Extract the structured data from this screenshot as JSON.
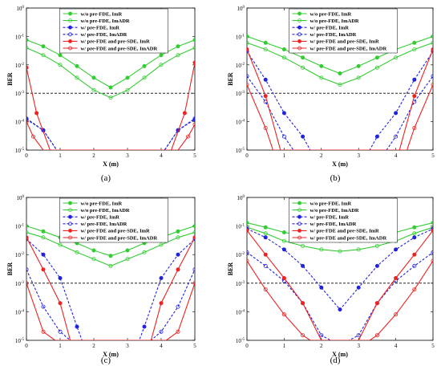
{
  "legend": [
    "w/o pre-FDE, ImR",
    "w/o pre-FDE, ImADR",
    "w/ pre-FDE, ImR",
    "w/ pre-FDE, ImADR",
    "w/ pre-FDE and pre-SDE, ImR",
    "w/ pre-FDE and pre-SDE, ImADR"
  ],
  "styles": {
    "green": "#33cc33",
    "blue": "#2222dd",
    "red": "#ee2222",
    "threshold": "#000000"
  },
  "chart_data": [
    {
      "type": "line",
      "caption": "(a)",
      "xlabel": "X (m)",
      "ylabel": "BER",
      "xlim": [
        0,
        5
      ],
      "ylim": [
        1e-05,
        1
      ],
      "yscale": "log",
      "threshold": 0.001,
      "x": [
        0,
        0.5,
        1,
        1.5,
        2,
        2.5,
        3,
        3.5,
        4,
        4.5,
        5
      ],
      "series": [
        {
          "name": "w/o pre-FDE, ImR",
          "color": "green",
          "dash": false,
          "values": [
            0.075,
            0.045,
            0.022,
            0.009,
            0.0035,
            0.0016,
            0.0035,
            0.009,
            0.022,
            0.045,
            0.075
          ]
        },
        {
          "name": "w/o pre-FDE, ImADR",
          "color": "green",
          "dash": false,
          "values": [
            0.04,
            0.022,
            0.01,
            0.0035,
            0.0013,
            0.0007,
            0.0013,
            0.0035,
            0.01,
            0.022,
            0.04
          ]
        },
        {
          "name": "w/ pre-FDE, ImR",
          "color": "blue",
          "dash": true,
          "x": [
            0,
            0.5,
            0.9,
            4.1,
            4.5,
            5
          ],
          "values": [
            0.00012,
            5e-05,
            1e-05,
            1e-05,
            5e-05,
            0.00012
          ]
        },
        {
          "name": "w/ pre-FDE, ImADR",
          "color": "blue",
          "dash": true,
          "x": [
            0,
            0.5,
            0.9,
            4.1,
            4.5,
            5
          ],
          "values": [
            0.00013,
            5e-05,
            1e-05,
            1e-05,
            5e-05,
            0.00013
          ]
        },
        {
          "name": "w/ pre-FDE and pre-SDE, ImR",
          "color": "red",
          "dash": false,
          "x": [
            0,
            0.3,
            0.7,
            4.3,
            4.7,
            5
          ],
          "values": [
            0.008,
            0.0002,
            1e-05,
            1e-05,
            0.0002,
            0.012
          ]
        },
        {
          "name": "w/ pre-FDE and pre-SDE, ImADR",
          "color": "red",
          "dash": false,
          "x": [
            0,
            0.2,
            0.5,
            4.5,
            4.8,
            5
          ],
          "values": [
            0.0001,
            3e-05,
            1e-05,
            1e-05,
            3e-05,
            8e-05
          ]
        }
      ]
    },
    {
      "type": "line",
      "caption": "(b)",
      "xlabel": "X (m)",
      "ylabel": "BER",
      "xlim": [
        0,
        5
      ],
      "ylim": [
        1e-05,
        1
      ],
      "yscale": "log",
      "threshold": 0.001,
      "x": [
        0,
        0.5,
        1,
        1.5,
        2,
        2.5,
        3,
        3.5,
        4,
        4.5,
        5
      ],
      "series": [
        {
          "name": "w/o pre-FDE, ImR",
          "color": "green",
          "dash": false,
          "values": [
            0.1,
            0.06,
            0.035,
            0.018,
            0.009,
            0.005,
            0.009,
            0.018,
            0.035,
            0.06,
            0.1
          ]
        },
        {
          "name": "w/o pre-FDE, ImADR",
          "color": "green",
          "dash": false,
          "values": [
            0.06,
            0.035,
            0.018,
            0.008,
            0.0035,
            0.002,
            0.0035,
            0.008,
            0.018,
            0.035,
            0.06
          ]
        },
        {
          "name": "w/ pre-FDE, ImR",
          "color": "blue",
          "dash": true,
          "x": [
            0,
            0.5,
            1,
            1.5,
            1.7,
            3.3,
            3.5,
            4,
            4.5,
            5
          ],
          "values": [
            0.03,
            0.003,
            0.0002,
            3e-05,
            1e-05,
            1e-05,
            3e-05,
            0.0002,
            0.003,
            0.03
          ]
        },
        {
          "name": "w/ pre-FDE, ImADR",
          "color": "blue",
          "dash": true,
          "x": [
            0,
            0.5,
            1,
            1.25,
            3.75,
            4,
            4.5,
            5
          ],
          "values": [
            0.004,
            0.0005,
            3e-05,
            1e-05,
            1e-05,
            3e-05,
            0.0005,
            0.004
          ]
        },
        {
          "name": "w/ pre-FDE and pre-SDE, ImR",
          "color": "red",
          "dash": false,
          "x": [
            0,
            0.5,
            0.9,
            4.1,
            4.5,
            5
          ],
          "values": [
            0.035,
            0.0008,
            1e-05,
            1e-05,
            0.0008,
            0.035
          ]
        },
        {
          "name": "w/ pre-FDE and pre-SDE, ImADR",
          "color": "red",
          "dash": false,
          "x": [
            0,
            0.5,
            0.7,
            4.3,
            4.5,
            5
          ],
          "values": [
            0.002,
            6e-05,
            1e-05,
            1e-05,
            6e-05,
            0.002
          ]
        }
      ]
    },
    {
      "type": "line",
      "caption": "(c)",
      "xlabel": "X (m)",
      "ylabel": "BER",
      "xlim": [
        0,
        5
      ],
      "ylim": [
        1e-05,
        1
      ],
      "yscale": "log",
      "threshold": 0.001,
      "x": [
        0,
        0.5,
        1,
        1.5,
        2,
        2.5,
        3,
        3.5,
        4,
        4.5,
        5
      ],
      "series": [
        {
          "name": "w/o pre-FDE, ImR",
          "color": "green",
          "dash": false,
          "values": [
            0.1,
            0.065,
            0.04,
            0.025,
            0.014,
            0.009,
            0.014,
            0.025,
            0.04,
            0.065,
            0.1
          ]
        },
        {
          "name": "w/o pre-FDE, ImADR",
          "color": "green",
          "dash": false,
          "values": [
            0.06,
            0.04,
            0.022,
            0.012,
            0.007,
            0.004,
            0.007,
            0.012,
            0.022,
            0.04,
            0.06
          ]
        },
        {
          "name": "w/ pre-FDE, ImR",
          "color": "blue",
          "dash": true,
          "x": [
            0,
            0.5,
            1,
            1.5,
            1.65,
            3.35,
            3.5,
            4,
            4.5,
            5
          ],
          "values": [
            0.035,
            0.01,
            0.0015,
            3e-05,
            1e-05,
            1e-05,
            3e-05,
            0.0015,
            0.01,
            0.035
          ]
        },
        {
          "name": "w/ pre-FDE, ImADR",
          "color": "blue",
          "dash": true,
          "x": [
            0,
            0.5,
            1,
            1.3,
            3.7,
            4,
            4.5,
            5
          ],
          "values": [
            0.003,
            0.00015,
            2e-05,
            1e-05,
            1e-05,
            2e-05,
            0.00015,
            0.003
          ]
        },
        {
          "name": "w/ pre-FDE and pre-SDE, ImR",
          "color": "red",
          "dash": false,
          "x": [
            0,
            0.5,
            1,
            1.3,
            3.7,
            4,
            4.5,
            5
          ],
          "values": [
            0.04,
            0.003,
            0.0002,
            1e-05,
            1e-05,
            0.0002,
            0.003,
            0.04
          ]
        },
        {
          "name": "w/ pre-FDE and pre-SDE, ImADR",
          "color": "red",
          "dash": false,
          "x": [
            0,
            0.5,
            0.85,
            4.15,
            4.5,
            5
          ],
          "values": [
            0.001,
            2e-05,
            1e-05,
            1e-05,
            2e-05,
            0.001
          ]
        }
      ]
    },
    {
      "type": "line",
      "caption": "(d)",
      "xlabel": "X (m)",
      "ylabel": "BER",
      "xlim": [
        0,
        5
      ],
      "ylim": [
        1e-05,
        1
      ],
      "yscale": "log",
      "threshold": 0.001,
      "x": [
        0,
        0.5,
        1,
        1.5,
        2,
        2.5,
        3,
        3.5,
        4,
        4.5,
        5
      ],
      "series": [
        {
          "name": "w/o pre-FDE, ImR",
          "color": "green",
          "dash": false,
          "values": [
            0.13,
            0.09,
            0.06,
            0.045,
            0.035,
            0.03,
            0.035,
            0.045,
            0.06,
            0.09,
            0.13
          ]
        },
        {
          "name": "w/o pre-FDE, ImADR",
          "color": "green",
          "dash": false,
          "values": [
            0.09,
            0.055,
            0.03,
            0.02,
            0.015,
            0.013,
            0.015,
            0.02,
            0.03,
            0.055,
            0.09
          ]
        },
        {
          "name": "w/ pre-FDE, ImR",
          "color": "blue",
          "dash": true,
          "values": [
            0.08,
            0.04,
            0.015,
            0.004,
            0.0007,
            0.00012,
            0.0007,
            0.004,
            0.015,
            0.04,
            0.08
          ]
        },
        {
          "name": "w/ pre-FDE, ImADR",
          "color": "blue",
          "dash": true,
          "x": [
            0,
            0.5,
            1,
            1.5,
            2,
            2.25,
            2.75,
            3,
            3.5,
            4,
            4.5,
            5
          ],
          "values": [
            0.012,
            0.004,
            0.0012,
            0.0002,
            1.5e-05,
            1e-05,
            1e-05,
            1.5e-05,
            0.0002,
            0.0012,
            0.004,
            0.012
          ]
        },
        {
          "name": "w/ pre-FDE and pre-SDE, ImR",
          "color": "red",
          "dash": false,
          "x": [
            0,
            0.5,
            1,
            1.5,
            2,
            3,
            3.5,
            4,
            4.5,
            5
          ],
          "values": [
            0.07,
            0.01,
            0.0015,
            0.0002,
            1e-05,
            1e-05,
            0.0002,
            0.0015,
            0.01,
            0.07
          ]
        },
        {
          "name": "w/ pre-FDE and pre-SDE, ImADR",
          "color": "red",
          "dash": false,
          "x": [
            0,
            0.5,
            1,
            1.5,
            1.7,
            3.3,
            3.5,
            4,
            4.5,
            5
          ],
          "values": [
            0.006,
            0.0006,
            8e-05,
            1.5e-05,
            1e-05,
            1e-05,
            1.5e-05,
            8e-05,
            0.0006,
            0.006
          ]
        }
      ]
    }
  ]
}
